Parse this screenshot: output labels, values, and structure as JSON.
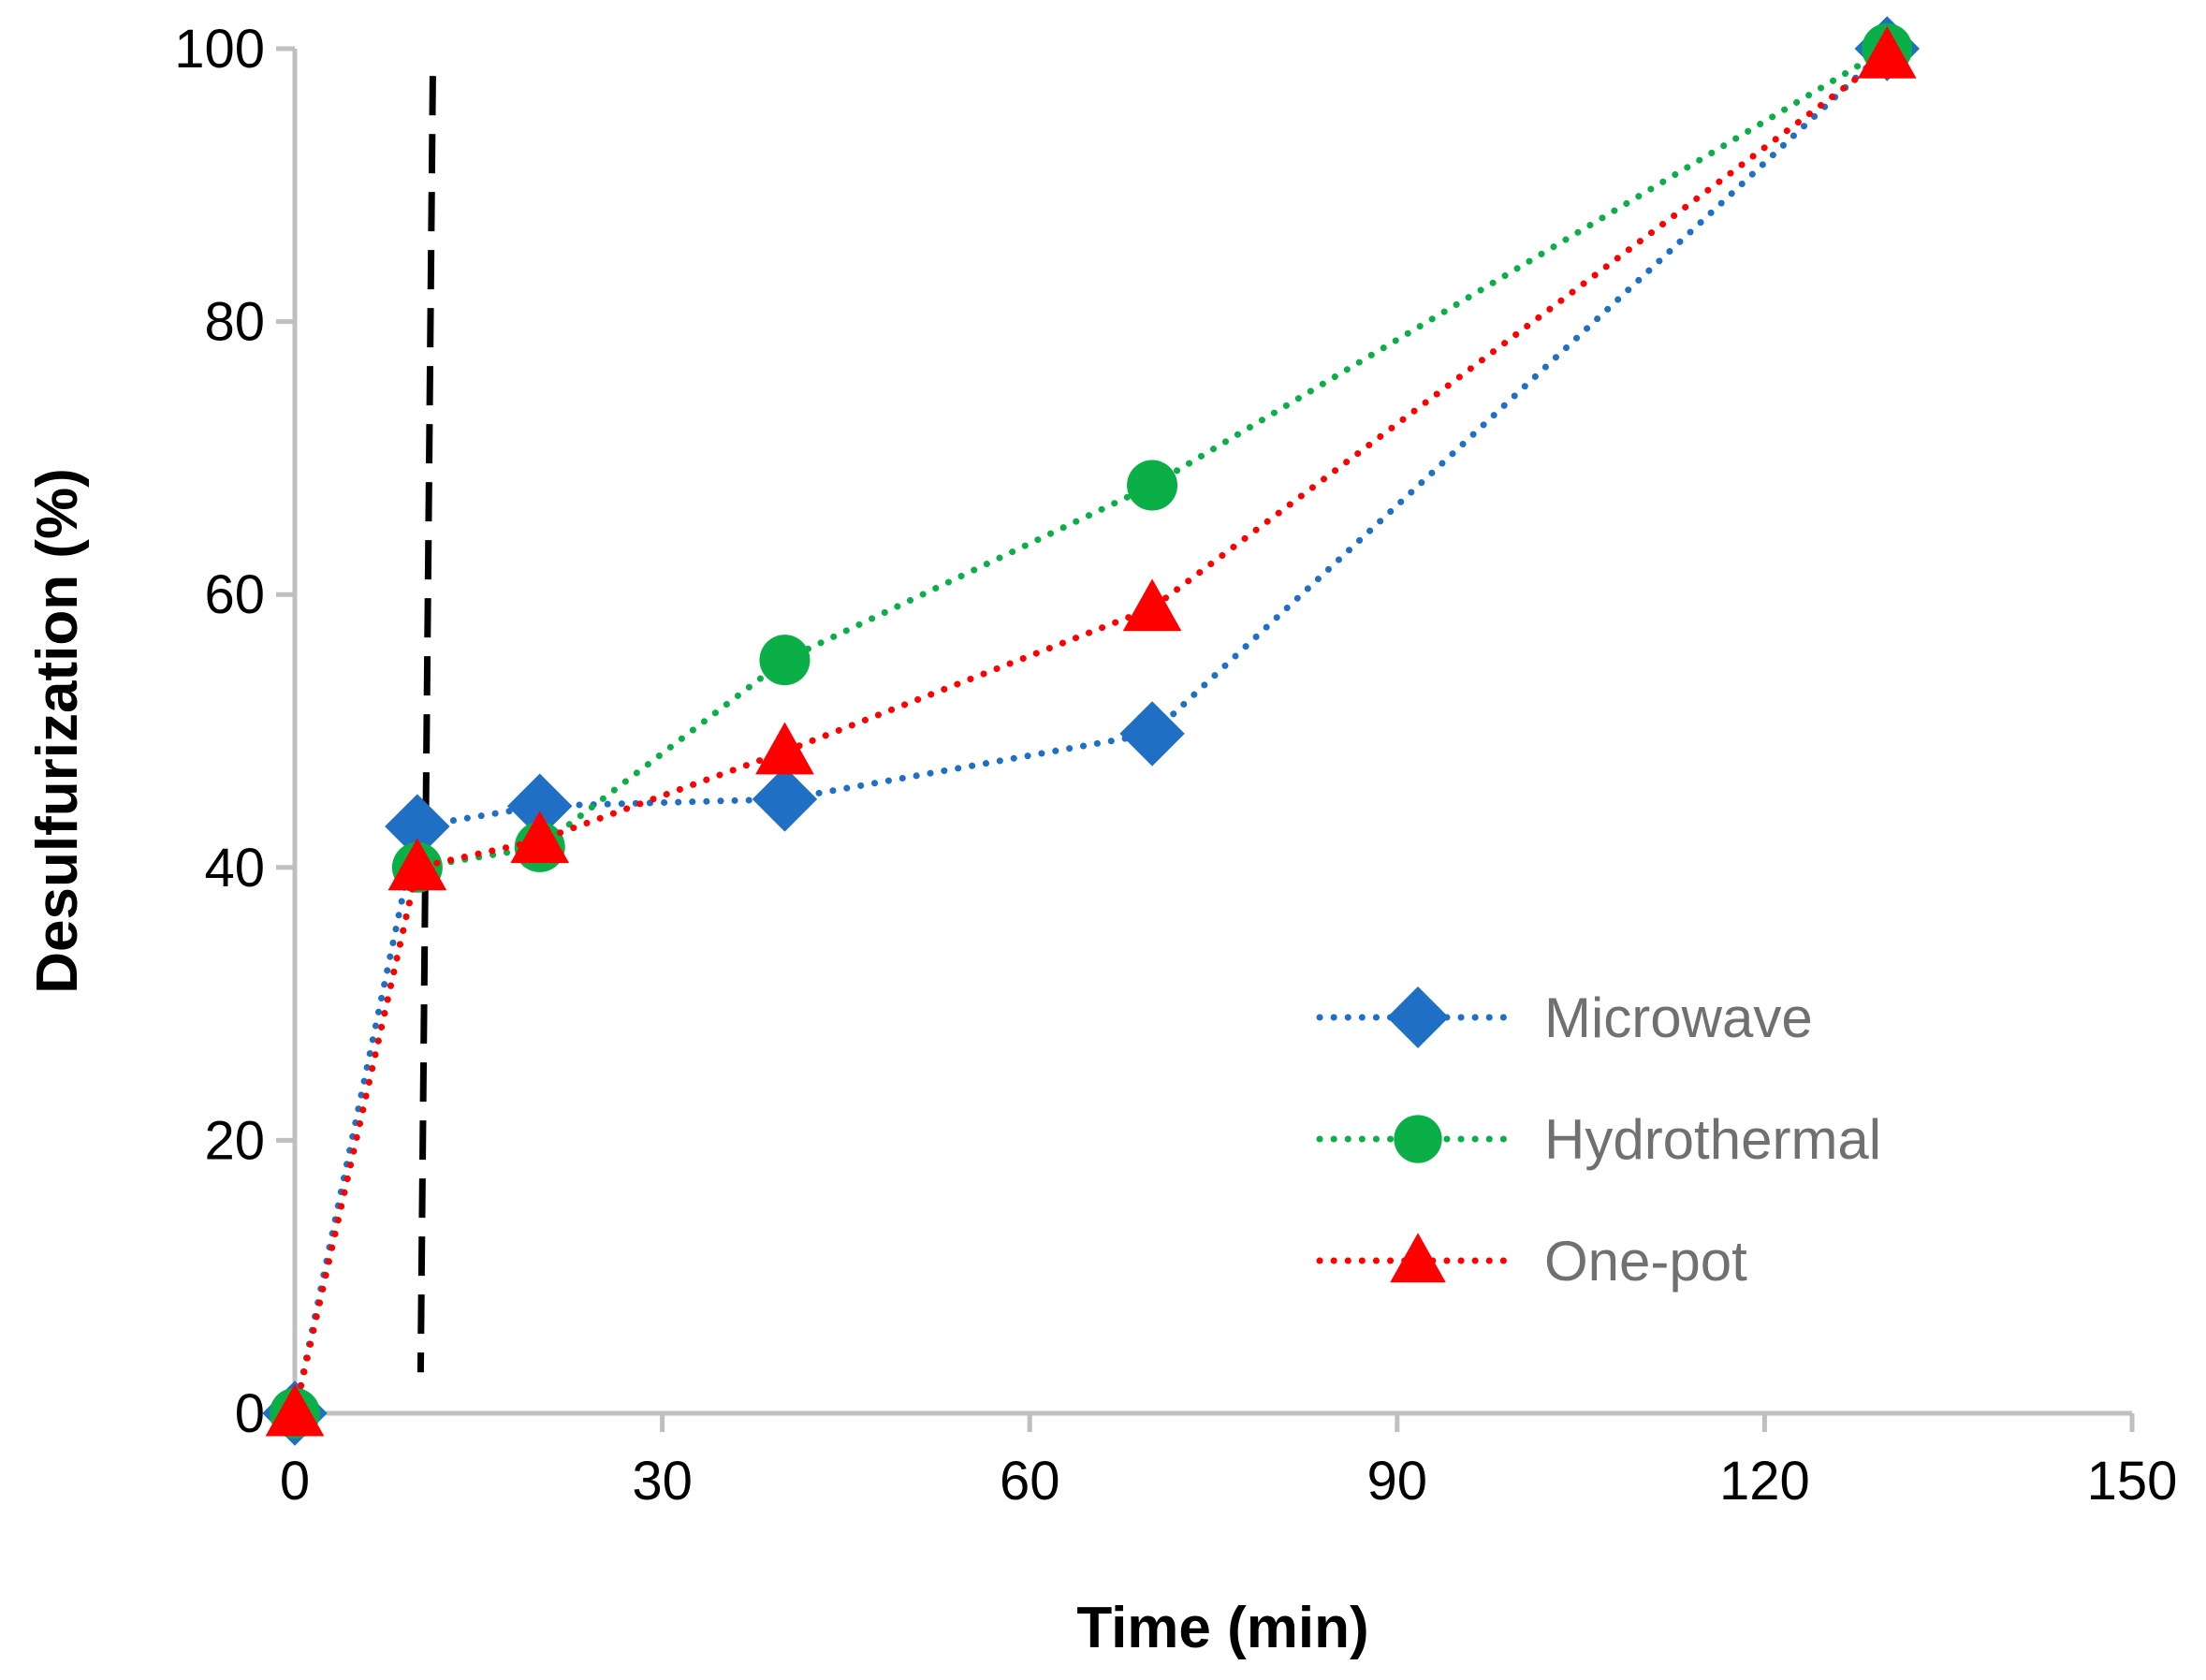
{
  "chart_data": {
    "type": "line",
    "title": "",
    "xlabel": "Time (min)",
    "ylabel": "Desulfurization (%)",
    "xlim": [
      0,
      150
    ],
    "ylim": [
      0,
      100
    ],
    "x_ticks": [
      0,
      30,
      60,
      90,
      120,
      150
    ],
    "y_ticks": [
      0,
      20,
      40,
      60,
      80,
      100
    ],
    "grid": false,
    "legend_position": "bottom-right",
    "reference_line": {
      "type": "vertical",
      "style": "dashed",
      "color": "#000000",
      "x": 10.5,
      "y_range": [
        3,
        98
      ]
    },
    "series": [
      {
        "name": "Microwave",
        "marker": "diamond",
        "color": "#1F6FC5",
        "x": [
          0,
          10,
          20,
          40,
          70,
          130
        ],
        "values": [
          0,
          43,
          44.5,
          45,
          49.8,
          100
        ]
      },
      {
        "name": "Hydrothermal",
        "marker": "circle",
        "color": "#0BAF47",
        "x": [
          0,
          10,
          20,
          40,
          70,
          130
        ],
        "values": [
          0,
          40,
          41.5,
          55.2,
          68,
          100
        ]
      },
      {
        "name": "One-pot",
        "marker": "triangle",
        "color": "#FF0000",
        "x": [
          0,
          10,
          20,
          40,
          70,
          130
        ],
        "values": [
          0,
          40,
          42,
          48.5,
          59,
          99.5
        ]
      }
    ]
  }
}
